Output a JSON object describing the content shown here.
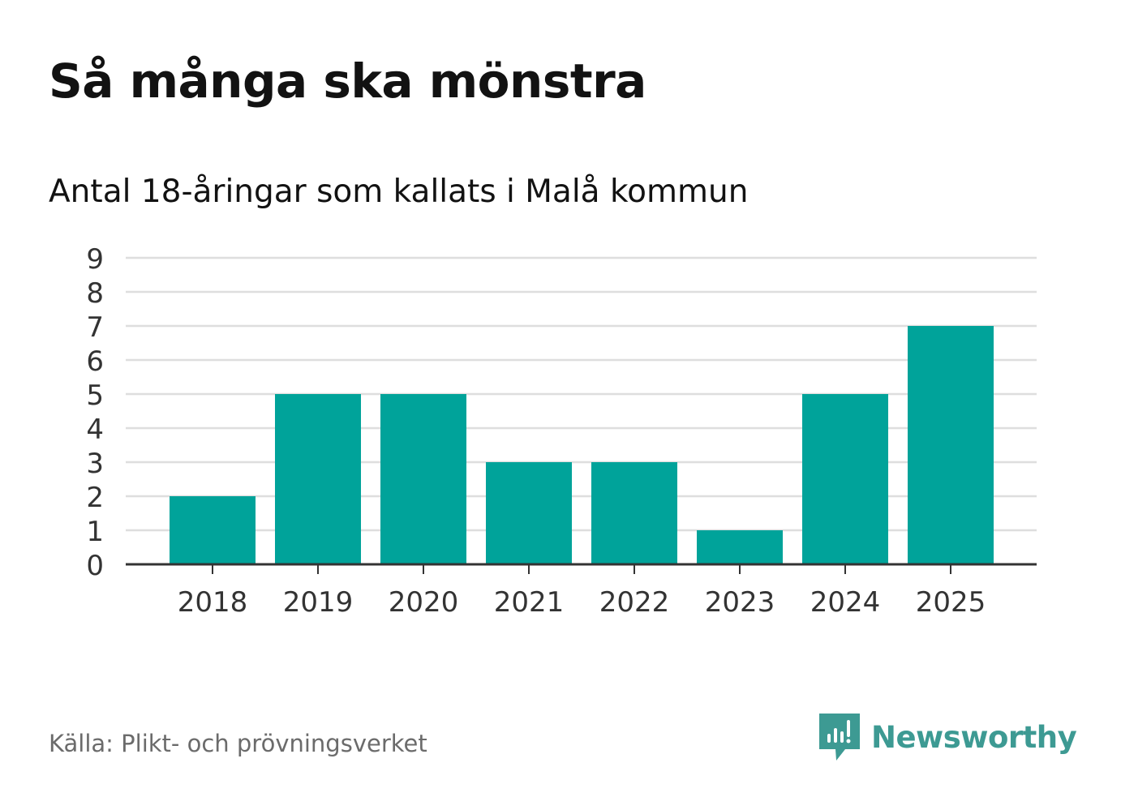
{
  "title": "Så många ska mönstra",
  "subtitle": "Antal 18-åringar som kallats i Malå kommun",
  "source": "Källa: Plikt- och prövningsverket",
  "brand": {
    "name": "Newsworthy",
    "icon": "newsworthy-logo-icon"
  },
  "colors": {
    "bar": "#00a39a",
    "grid": "#dedede",
    "axis": "#333333",
    "brand": "#3d9a93"
  },
  "chart_data": {
    "type": "bar",
    "title": "Så många ska mönstra",
    "subtitle": "Antal 18-åringar som kallats i Malå kommun",
    "categories": [
      "2018",
      "2019",
      "2020",
      "2021",
      "2022",
      "2023",
      "2024",
      "2025"
    ],
    "values": [
      2,
      5,
      5,
      3,
      3,
      1,
      5,
      7
    ],
    "yticks": [
      0,
      1,
      2,
      3,
      4,
      5,
      6,
      7,
      8,
      9
    ],
    "ylim": [
      0,
      9
    ],
    "xlabel": "",
    "ylabel": "",
    "grid": true,
    "legend": "none"
  }
}
